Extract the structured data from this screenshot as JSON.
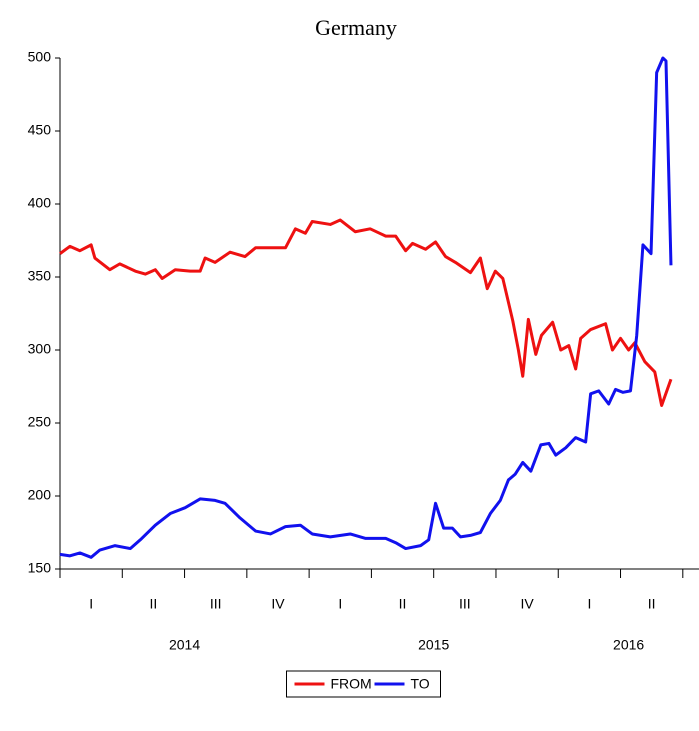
{
  "chart_data": {
    "type": "line",
    "title": "Germany",
    "xlim": [
      0,
      10.26
    ],
    "xticks": [
      0,
      1,
      2,
      3,
      4,
      5,
      6,
      7,
      8,
      9,
      10
    ],
    "quarter_labels": [
      "I",
      "II",
      "III",
      "IV",
      "I",
      "II",
      "III",
      "IV",
      "I",
      "II",
      "II"
    ],
    "year_labels": [
      "2014",
      "2015",
      "2016"
    ],
    "ylim": [
      150,
      500
    ],
    "yticks": [
      150,
      200,
      250,
      300,
      350,
      400,
      450,
      500
    ],
    "legend": "bottom",
    "series": [
      {
        "name": "FROM",
        "color": "#ee1111",
        "x": [
          0,
          0.16,
          0.32,
          0.5,
          0.56,
          0.8,
          0.96,
          1.21,
          1.37,
          1.53,
          1.64,
          1.85,
          2.09,
          2.25,
          2.33,
          2.49,
          2.73,
          2.97,
          3.14,
          3.38,
          3.62,
          3.78,
          3.94,
          4.05,
          4.34,
          4.5,
          4.74,
          4.98,
          5.23,
          5.39,
          5.55,
          5.66,
          5.87,
          6.03,
          6.19,
          6.35,
          6.59,
          6.75,
          6.86,
          6.99,
          7.11,
          7.27,
          7.36,
          7.43,
          7.52,
          7.64,
          7.73,
          7.91,
          8.04,
          8.17,
          8.28,
          8.36,
          8.52,
          8.76,
          8.87,
          9.0,
          9.13,
          9.23,
          9.39,
          9.55,
          9.66,
          9.81
        ],
        "values": [
          366,
          371,
          368,
          372,
          363,
          355,
          359,
          354,
          352,
          355,
          349,
          355,
          354,
          354,
          363,
          360,
          367,
          364,
          370,
          370,
          370,
          383,
          380,
          388,
          386,
          389,
          381,
          383,
          378,
          378,
          368,
          373,
          369,
          374,
          364,
          360,
          353,
          363,
          342,
          354,
          349,
          320,
          300,
          282,
          321,
          297,
          310,
          319,
          300,
          303,
          287,
          308,
          314,
          318,
          300,
          308,
          300,
          305,
          292,
          285,
          262,
          280
        ]
      },
      {
        "name": "TO",
        "color": "#1111ee",
        "x": [
          0,
          0.16,
          0.32,
          0.5,
          0.64,
          0.88,
          1.13,
          1.29,
          1.53,
          1.77,
          2.01,
          2.25,
          2.49,
          2.65,
          2.89,
          3.14,
          3.38,
          3.62,
          3.86,
          4.05,
          4.34,
          4.66,
          4.9,
          5.23,
          5.39,
          5.55,
          5.79,
          5.92,
          6.03,
          6.16,
          6.3,
          6.43,
          6.59,
          6.75,
          6.91,
          7.07,
          7.2,
          7.31,
          7.43,
          7.56,
          7.72,
          7.85,
          7.96,
          8.12,
          8.28,
          8.44,
          8.52,
          8.65,
          8.81,
          8.92,
          9.04,
          9.16,
          9.26,
          9.36,
          9.49,
          9.58,
          9.68,
          9.73,
          9.81
        ],
        "values": [
          160,
          159,
          161,
          158,
          163,
          166,
          164,
          170,
          180,
          188,
          192,
          198,
          197,
          195,
          185,
          176,
          174,
          179,
          180,
          174,
          172,
          174,
          171,
          171,
          168,
          164,
          166,
          170,
          195,
          178,
          178,
          172,
          173,
          175,
          188,
          197,
          211,
          215,
          223,
          217,
          235,
          236,
          228,
          233,
          240,
          237,
          270,
          272,
          263,
          273,
          271,
          272,
          310,
          372,
          366,
          490,
          500,
          498,
          358
        ]
      }
    ]
  }
}
